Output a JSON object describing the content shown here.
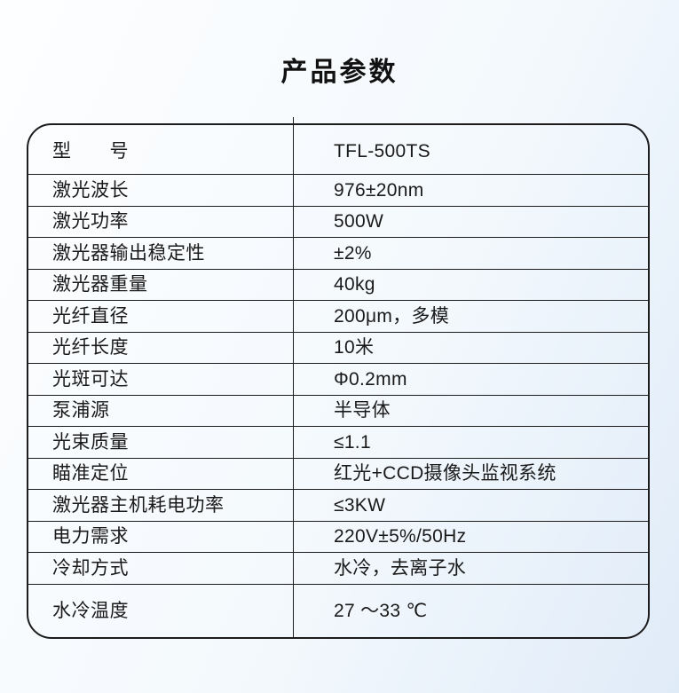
{
  "page": {
    "title": "产品参数"
  },
  "colors": {
    "table_border": "#1c1c1c",
    "text": "#1a1a1a",
    "background_top": "#fdfeff",
    "background_mid": "#f4f9fd",
    "background_bottom": "#e0ebf8"
  },
  "table": {
    "rows": [
      {
        "label": "型　　号",
        "value": "TFL-500TS"
      },
      {
        "label": "激光波长",
        "value": "976±20nm"
      },
      {
        "label": "激光功率",
        "value": "500W"
      },
      {
        "label": "激光器输出稳定性",
        "value": "±2%"
      },
      {
        "label": "激光器重量",
        "value": "40kg"
      },
      {
        "label": "光纤直径",
        "value": "200μm，多模"
      },
      {
        "label": "光纤长度",
        "value": "10米"
      },
      {
        "label": "光斑可达",
        "value": "Φ0.2mm"
      },
      {
        "label": "泵浦源",
        "value": "半导体"
      },
      {
        "label": "光束质量",
        "value": "≤1.1"
      },
      {
        "label": "瞄准定位",
        "value": "红光+CCD摄像头监视系统"
      },
      {
        "label": "激光器主机耗电功率",
        "value": "≤3KW"
      },
      {
        "label": "电力需求",
        "value": "220V±5%/50Hz"
      },
      {
        "label": "冷却方式",
        "value": "水冷，去离子水"
      },
      {
        "label": "水冷温度",
        "value": "27 ～33 ℃"
      }
    ]
  }
}
